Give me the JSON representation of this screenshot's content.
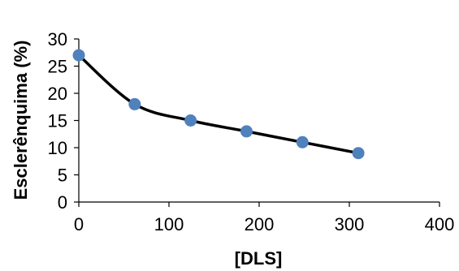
{
  "chart_data": {
    "type": "scatter",
    "title": "",
    "xlabel": "[DLS]",
    "ylabel": "Esclerênquima (%)",
    "xlim": [
      0,
      400
    ],
    "ylim": [
      0,
      30
    ],
    "xticks": [
      0,
      100,
      200,
      300,
      400
    ],
    "yticks": [
      0,
      5,
      10,
      15,
      20,
      25,
      30
    ],
    "grid": false,
    "legend": "none",
    "smoothed_line": true,
    "series": [
      {
        "x": [
          0,
          62,
          124,
          186,
          248,
          310
        ],
        "y": [
          27,
          18,
          15,
          13,
          11,
          9
        ],
        "marker_color": "#4f81bd",
        "line_color": "#000000"
      }
    ]
  }
}
